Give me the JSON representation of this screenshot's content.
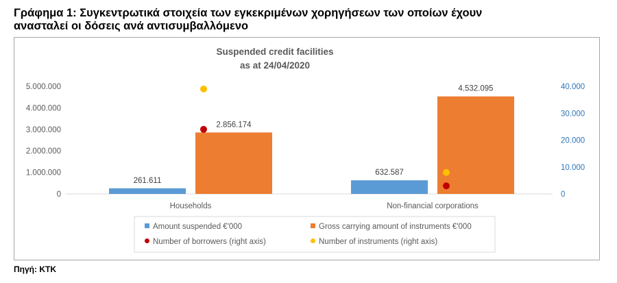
{
  "heading": {
    "line1": "Γράφημα 1: Συγκεντρωτικά στοιχεία των εγκεκριμένων χορηγήσεων των οποίων έχουν",
    "line2": "ανασταλεί οι δόσεις ανά αντισυμβαλλόμενο"
  },
  "source": "Πηγή: ΚΤΚ",
  "chart_data": {
    "type": "bar",
    "title": "Suspended credit facilities",
    "subtitle": "as at 24/04/2020",
    "categories": [
      "Households",
      "Non-financial corporations"
    ],
    "y_left": {
      "ticks": [
        "0",
        "1.000.000",
        "2.000.000",
        "3.000.000",
        "4.000.000",
        "5.000.000"
      ],
      "range": [
        0,
        5000000
      ]
    },
    "y_right": {
      "ticks": [
        "0",
        "10.000",
        "20.000",
        "30.000",
        "40.000"
      ],
      "range": [
        0,
        40000
      ]
    },
    "series": [
      {
        "name": "Amount suspended €'000",
        "kind": "bar",
        "axis": "left",
        "color": "#5b9bd5",
        "values": [
          261611,
          632587
        ],
        "labels": [
          "261.611",
          "632.587"
        ]
      },
      {
        "name": "Gross carrying amount of instruments €'000",
        "kind": "bar",
        "axis": "left",
        "color": "#ed7d31",
        "values": [
          2856174,
          4532095
        ],
        "labels": [
          "2.856.174",
          "4.532.095"
        ]
      },
      {
        "name": "Number of borrowers (right axis)",
        "kind": "point",
        "axis": "right",
        "color": "#c00000",
        "values": [
          24000,
          3000
        ]
      },
      {
        "name": "Number of instruments (right axis)",
        "kind": "point",
        "axis": "right",
        "color": "#ffc000",
        "values": [
          39000,
          8000
        ]
      }
    ],
    "grid": false,
    "legend_position": "bottom"
  }
}
